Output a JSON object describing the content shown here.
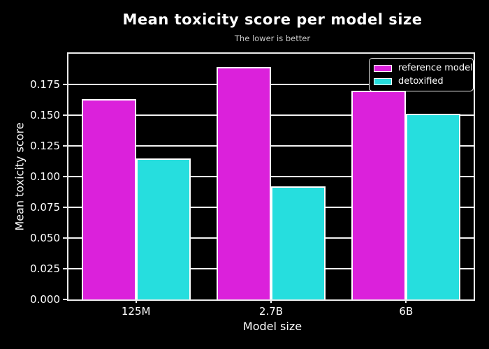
{
  "window": {
    "background_color": "#000000"
  },
  "chart_data": {
    "type": "bar",
    "title": "Mean toxicity score per model size",
    "subtitle": "The lower is better",
    "xlabel": "Model size",
    "ylabel": "Mean toxicity score",
    "categories": [
      "125M",
      "2.7B",
      "6B"
    ],
    "series": [
      {
        "name": "reference model",
        "color": "#db21db",
        "values": [
          0.163,
          0.189,
          0.17
        ]
      },
      {
        "name": "detoxified",
        "color": "#26dede",
        "values": [
          0.115,
          0.092,
          0.151
        ]
      }
    ],
    "ylim": [
      0,
      0.2
    ],
    "yticks": [
      0.0,
      0.025,
      0.05,
      0.075,
      0.1,
      0.125,
      0.15,
      0.175
    ],
    "ytick_labels": [
      "0.000",
      "0.025",
      "0.050",
      "0.075",
      "0.100",
      "0.125",
      "0.150",
      "0.175"
    ],
    "grid": "horizontal-only",
    "legend_position": "upper-right",
    "colors": {
      "background": "#000000",
      "title_text": "#ffffff",
      "subtitle_text": "#c8c8c8",
      "tick_text": "#ffffff",
      "axis_frame": "#ebebeb",
      "gridline": "#f2f2f2",
      "bar_edge": "#ffffff"
    }
  }
}
